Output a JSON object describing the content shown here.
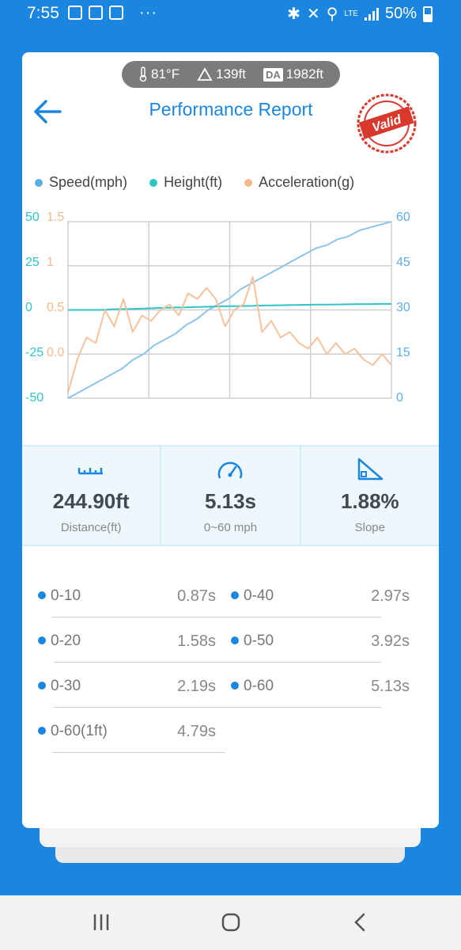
{
  "status_bar": {
    "time": "7:55",
    "network": "LTE",
    "battery": "50%",
    "more": "···"
  },
  "env": {
    "temperature": "81°F",
    "altitude": "139ft",
    "da_label": "DA",
    "density_altitude": "1982ft"
  },
  "header": {
    "title": "Performance Report",
    "stamp_text": "Valid"
  },
  "legend": [
    {
      "name": "Speed(mph)",
      "color": "#5aaee6"
    },
    {
      "name": "Height(ft)",
      "color": "#2ec4c8"
    },
    {
      "name": "Acceleration(g)",
      "color": "#f5b98c"
    }
  ],
  "chart_data": {
    "type": "line",
    "y_left_height_ticks": [
      "50",
      "25",
      "0",
      "-25",
      "-50"
    ],
    "y_left_accel_ticks": [
      "1.5",
      "1",
      "0.5",
      "0.0"
    ],
    "y_right_speed_ticks": [
      "60",
      "45",
      "30",
      "15",
      "0"
    ],
    "grid": true,
    "series": [
      {
        "name": "Speed(mph)",
        "axis": "right",
        "color": "#8cc4ea",
        "values": [
          0,
          2,
          4,
          6,
          8,
          10,
          13,
          15,
          18,
          20,
          22,
          25,
          27,
          30,
          32,
          34,
          37,
          39,
          41,
          43,
          45,
          47,
          49,
          51,
          52,
          54,
          55,
          57,
          58,
          59,
          60
        ]
      },
      {
        "name": "Height(ft)",
        "axis": "left-height",
        "color": "#2ec4c8",
        "values": [
          0,
          0,
          0,
          0,
          0.3,
          0.5,
          0.6,
          0.8,
          1,
          1.2,
          1.4,
          1.5,
          1.7,
          1.8,
          2,
          2.1,
          2.2,
          2.3,
          2.5,
          2.6,
          2.7,
          2.8,
          2.9,
          3,
          3,
          3.1,
          3.2,
          3.3,
          3.3,
          3.4,
          3.4
        ]
      },
      {
        "name": "Acceleration(g)",
        "axis": "left-accel",
        "color": "#f5c29d",
        "values": [
          0.0,
          0.3,
          0.5,
          0.45,
          0.75,
          0.6,
          0.85,
          0.55,
          0.7,
          0.65,
          0.75,
          0.8,
          0.7,
          0.9,
          0.85,
          0.95,
          0.85,
          0.6,
          0.75,
          0.8,
          1.05,
          0.55,
          0.65,
          0.5,
          0.55,
          0.45,
          0.4,
          0.5,
          0.35,
          0.45,
          0.35,
          0.4,
          0.3,
          0.25,
          0.35,
          0.25
        ]
      }
    ]
  },
  "stats": [
    {
      "value": "244.90ft",
      "label": "Distance(ft)",
      "icon": "ruler-icon"
    },
    {
      "value": "5.13s",
      "label": "0~60 mph",
      "icon": "speedometer-icon"
    },
    {
      "value": "1.88%",
      "label": "Slope",
      "icon": "slope-icon"
    }
  ],
  "times": [
    {
      "label": "0-10",
      "value": "0.87s"
    },
    {
      "label": "0-40",
      "value": "2.97s"
    },
    {
      "label": "0-20",
      "value": "1.58s"
    },
    {
      "label": "0-50",
      "value": "3.92s"
    },
    {
      "label": "0-30",
      "value": "2.19s"
    },
    {
      "label": "0-60",
      "value": "5.13s"
    },
    {
      "label": "0-60(1ft)",
      "value": "4.79s"
    }
  ]
}
